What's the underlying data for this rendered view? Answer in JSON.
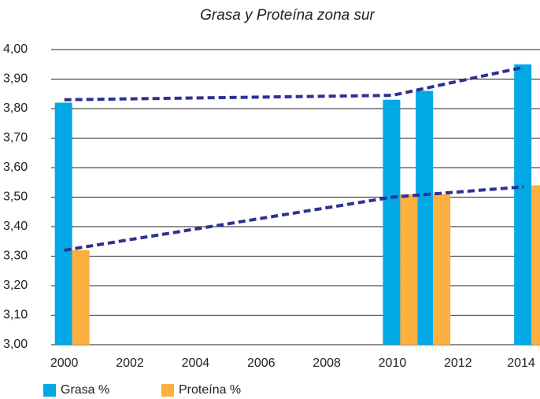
{
  "chart_data": {
    "type": "bar",
    "title": "Grasa y Proteína zona sur",
    "x": [
      2000,
      2010,
      2011,
      2014
    ],
    "series": [
      {
        "name": "Grasa %",
        "color": "#00a9e6",
        "values": [
          3.82,
          3.83,
          3.86,
          3.95
        ]
      },
      {
        "name": "Proteína %",
        "color": "#fbb040",
        "values": [
          3.32,
          3.51,
          3.51,
          3.54
        ]
      }
    ],
    "trend_lines": [
      {
        "color": "#2e3192",
        "x": [
          2000,
          2010,
          2014
        ],
        "values": [
          3.83,
          3.845,
          3.94
        ]
      },
      {
        "color": "#2e3192",
        "x": [
          2000,
          2010,
          2014
        ],
        "values": [
          3.32,
          3.5,
          3.535
        ]
      }
    ],
    "xlim": [
      1999.6,
      2014.5
    ],
    "xticks": [
      2000,
      2002,
      2004,
      2006,
      2008,
      2010,
      2012,
      2014
    ],
    "ylim": [
      3.0,
      4.0
    ],
    "yticks": [
      {
        "value": 3.0,
        "label": "3,00"
      },
      {
        "value": 3.1,
        "label": "3,10"
      },
      {
        "value": 3.2,
        "label": "3,20"
      },
      {
        "value": 3.3,
        "label": "3,30"
      },
      {
        "value": 3.4,
        "label": "3,40"
      },
      {
        "value": 3.5,
        "label": "3,50"
      },
      {
        "value": 3.6,
        "label": "3,60"
      },
      {
        "value": 3.7,
        "label": "3,70"
      },
      {
        "value": 3.8,
        "label": "3,80"
      },
      {
        "value": 3.9,
        "label": "3,90"
      },
      {
        "value": 4.0,
        "label": "4,00"
      }
    ],
    "grid": true,
    "legend": "bottom-left"
  }
}
